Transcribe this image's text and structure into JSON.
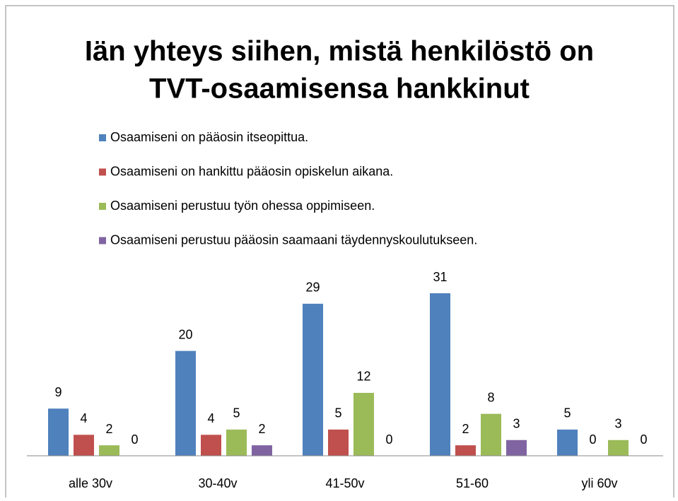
{
  "chart_data": {
    "type": "bar",
    "title": [
      "Iän yhteys siihen, mistä henkilöstö on",
      "TVT-osaamisensa hankkinut"
    ],
    "categories": [
      "alle 30v",
      "30-40v",
      "41-50v",
      "51-60",
      "yli 60v"
    ],
    "series": [
      {
        "name": "Osaamiseni on pääosin itseopittua.",
        "color": "#4f81bd",
        "values": [
          9,
          20,
          29,
          31,
          5
        ]
      },
      {
        "name": "Osaamiseni on hankittu pääosin opiskelun aikana.",
        "color": "#c0504d",
        "values": [
          4,
          4,
          5,
          2,
          0
        ]
      },
      {
        "name": "Osaamiseni perustuu työn ohessa oppimiseen.",
        "color": "#9bbb59",
        "values": [
          2,
          5,
          12,
          8,
          3
        ]
      },
      {
        "name": "Osaamiseni perustuu pääosin saamaani täydennyskoulutukseen.",
        "color": "#8064a2",
        "values": [
          0,
          2,
          0,
          3,
          0
        ]
      }
    ],
    "legend": "top"
  }
}
